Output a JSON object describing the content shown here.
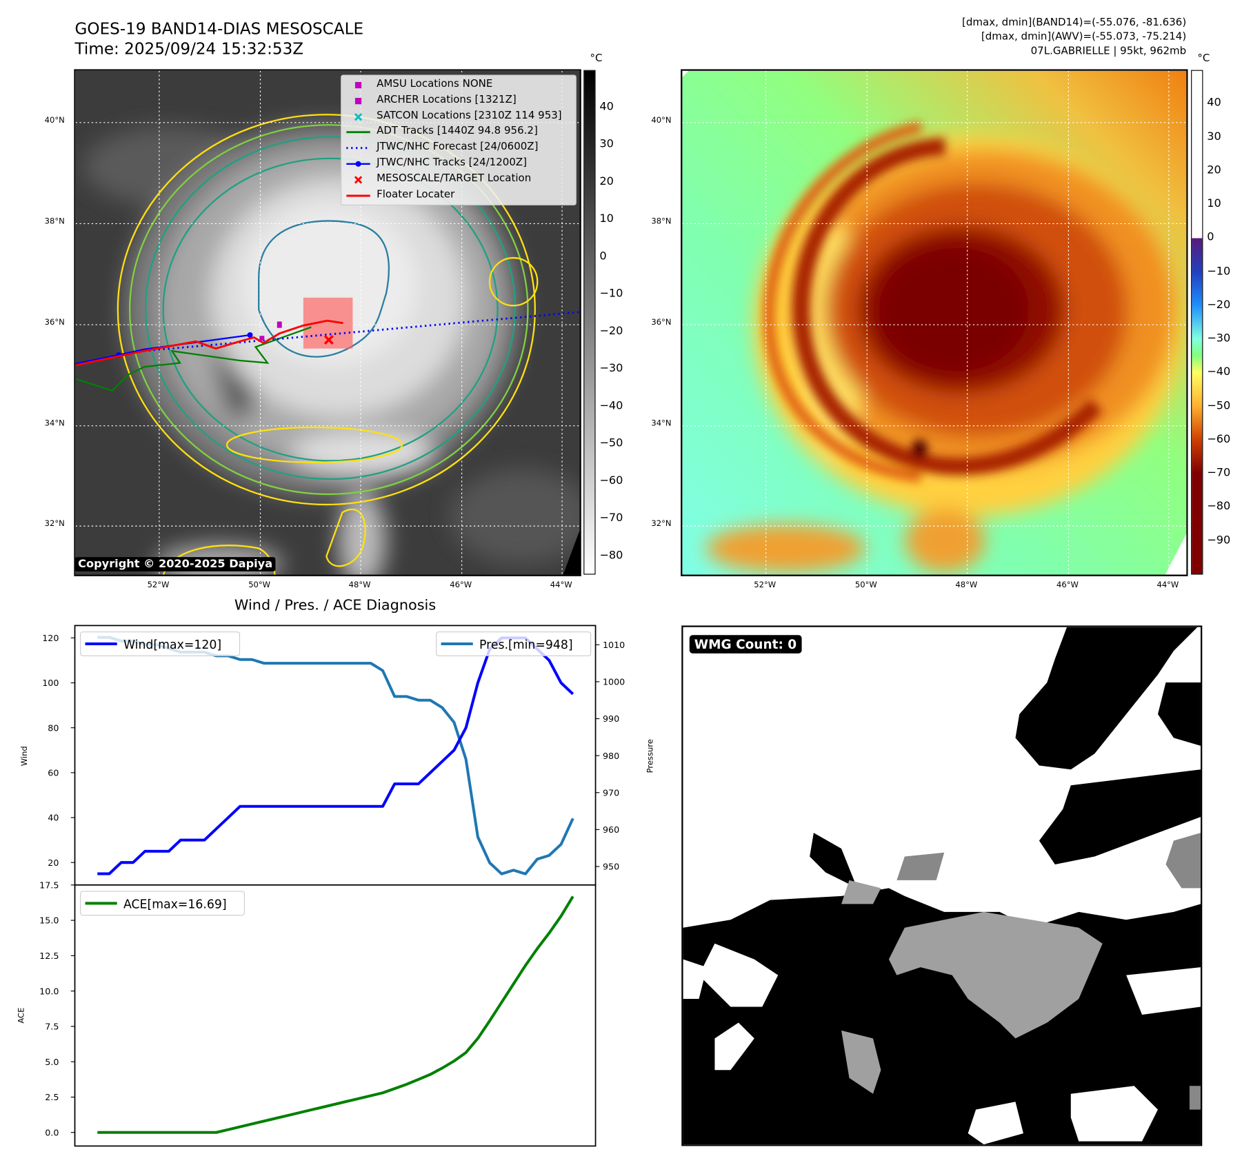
{
  "header": {
    "title_line1": "GOES-19 BAND14-DIAS MESOSCALE",
    "title_line2": "Time: 2025/09/24 15:32:53Z",
    "info_line1": "[dmax, dmin](BAND14)=(-55.076, -81.636)",
    "info_line2": "[dmax, dmin](AWV)=(-55.073, -75.214)",
    "info_line3": "07L.GABRIELLE | 95kt, 962mb"
  },
  "map_axes": {
    "lat_labels": [
      "40°N",
      "38°N",
      "36°N",
      "34°N",
      "32°N"
    ],
    "lon_labels": [
      "52°W",
      "50°W",
      "48°W",
      "46°W",
      "44°W"
    ]
  },
  "ir_map": {
    "legend": [
      {
        "label": "AMSU Locations NONE",
        "marker": "square",
        "color": "#c000c0"
      },
      {
        "label": "ARCHER Locations [1321Z]",
        "marker": "square",
        "color": "#c000c0"
      },
      {
        "label": "SATCON Locations [2310Z 114 953]",
        "marker": "x",
        "color": "#00c0c0"
      },
      {
        "label": "ADT Tracks [1440Z 94.8 956.2]",
        "marker": "line",
        "color": "#008000"
      },
      {
        "label": "JTWC/NHC Forecast [24/0600Z]",
        "marker": "dotted",
        "color": "#0000ff"
      },
      {
        "label": "JTWC/NHC Tracks [24/1200Z]",
        "marker": "line-dot",
        "color": "#0000ff"
      },
      {
        "label": "MESOSCALE/TARGET Location",
        "marker": "x",
        "color": "#ff0000"
      },
      {
        "label": "Floater Locater",
        "marker": "line",
        "color": "#ff0000"
      }
    ],
    "copyright": "Copyright © 2020-2025 Dapiya",
    "colorbar_unit": "°C",
    "colorbar_ticks": [
      "40",
      "30",
      "20",
      "10",
      "0",
      "−10",
      "−20",
      "−30",
      "−40",
      "−50",
      "−60",
      "−70",
      "−80"
    ],
    "colorbar_range": [
      -85,
      50
    ]
  },
  "awv_map": {
    "colorbar_unit": "°C",
    "colorbar_ticks": [
      "40",
      "30",
      "20",
      "10",
      "0",
      "−10",
      "−20",
      "−30",
      "−40",
      "−50",
      "−60",
      "−70",
      "−80",
      "−90"
    ],
    "colorbar_range": [
      -100,
      50
    ]
  },
  "wmg": {
    "label": "WMG Count: 0"
  },
  "colors": {
    "wind": "#0000ff",
    "pressure": "#1f77b4",
    "ace": "#008000"
  },
  "chart_data": [
    {
      "type": "line",
      "title": "Wind / Pres. / ACE Diagnosis",
      "ylabel": "Wind",
      "y2label": "Pressure",
      "ylim": [
        10,
        125.5
      ],
      "y2lim": [
        945,
        1015.2
      ],
      "xlim": [
        -1.9,
        41.9
      ],
      "yticks": [
        20,
        40,
        60,
        80,
        100,
        120
      ],
      "y2ticks": [
        950,
        960,
        970,
        980,
        990,
        1000,
        1010
      ],
      "series": [
        {
          "name": "Wind[max=120]",
          "axis": "left",
          "values": [
            15,
            15,
            20,
            20,
            25,
            25,
            25,
            30,
            30,
            30,
            35,
            40,
            45,
            45,
            45,
            45,
            45,
            45,
            45,
            45,
            45,
            45,
            45,
            45,
            45,
            55,
            55,
            55,
            60,
            65,
            70,
            80,
            100,
            115,
            120,
            120,
            120,
            115,
            110,
            100,
            95
          ]
        },
        {
          "name": "Pres.[min=948]",
          "axis": "right",
          "values": [
            1012,
            1012,
            1011,
            1011,
            1010,
            1010,
            1009,
            1008,
            1008,
            1008,
            1007,
            1007,
            1006,
            1006,
            1005,
            1005,
            1005,
            1005,
            1005,
            1005,
            1005,
            1005,
            1005,
            1005,
            1003,
            996,
            996,
            995,
            995,
            993,
            989,
            979,
            958,
            951,
            948,
            949,
            948,
            952,
            953,
            956,
            963
          ]
        }
      ]
    },
    {
      "type": "line",
      "ylabel": "ACE",
      "ylim": [
        -0.96,
        17.5
      ],
      "xlim": [
        -1.9,
        41.9
      ],
      "yticks": [
        "0.0",
        "2.5",
        "5.0",
        "7.5",
        "10.0",
        "12.5",
        "15.0",
        "17.5"
      ],
      "series": [
        {
          "name": "ACE[max=16.69]",
          "values": [
            0,
            0,
            0,
            0,
            0,
            0,
            0,
            0,
            0,
            0,
            0,
            0.2,
            0.4,
            0.6,
            0.8,
            1.0,
            1.2,
            1.4,
            1.6,
            1.8,
            2.0,
            2.2,
            2.4,
            2.6,
            2.8,
            3.1,
            3.4,
            3.75,
            4.1,
            4.55,
            5.05,
            5.65,
            6.65,
            7.9,
            9.2,
            10.5,
            11.8,
            13.0,
            14.1,
            15.3,
            16.69
          ]
        }
      ]
    }
  ]
}
